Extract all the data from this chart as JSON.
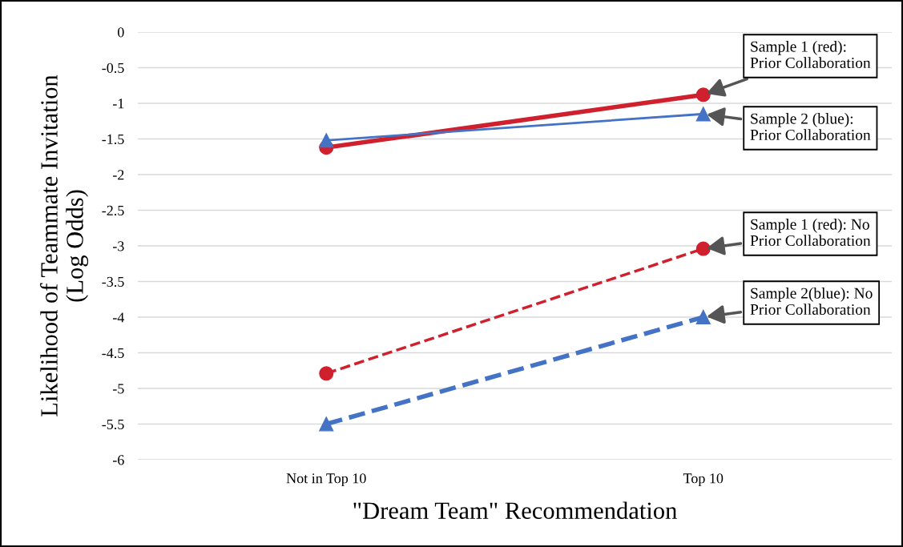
{
  "chart_data": {
    "type": "line",
    "ylabel": "Likelihood of Teammate Invitation\n(Log Odds)",
    "xlabel": "\"Dream Team\" Recommendation",
    "categories": [
      "Not in Top 10",
      "Top 10"
    ],
    "series": [
      {
        "color": "#d0202e",
        "values": [
          -1.62,
          -0.88
        ],
        "marker": "circle",
        "line_style": "solid"
      },
      {
        "color": "#4472c4",
        "values": [
          -1.52,
          -1.15
        ],
        "marker": "triangle",
        "line_style": "solid"
      },
      {
        "color": "#d0202e",
        "values": [
          -4.79,
          -3.04
        ],
        "marker": "circle",
        "line_style": "dashed"
      },
      {
        "color": "#4472c4",
        "values": [
          -5.5,
          -4.0
        ],
        "marker": "triangle",
        "line_style": "dashed"
      }
    ],
    "ylim": [
      -6,
      0
    ],
    "yticks": [
      0,
      -0.5,
      -1,
      -1.5,
      -2,
      -2.5,
      -3,
      -3.5,
      -4,
      -4.5,
      -5,
      -5.5,
      -6
    ],
    "grid": "y",
    "annotations": [
      {
        "text": "Sample 1 (red):\nPrior Collaboration",
        "x": "Top 10",
        "y": -0.88
      },
      {
        "text": "Sample 2 (blue):\nPrior Collaboration",
        "x": "Top 10",
        "y": -1.15
      },
      {
        "text": "Sample 1 (red): No\nPrior Collaboration",
        "x": "Top 10",
        "y": -3.04
      },
      {
        "text": "Sample 2(blue): No\nPrior Collaboration",
        "x": "Top 10",
        "y": -4.0
      }
    ]
  }
}
